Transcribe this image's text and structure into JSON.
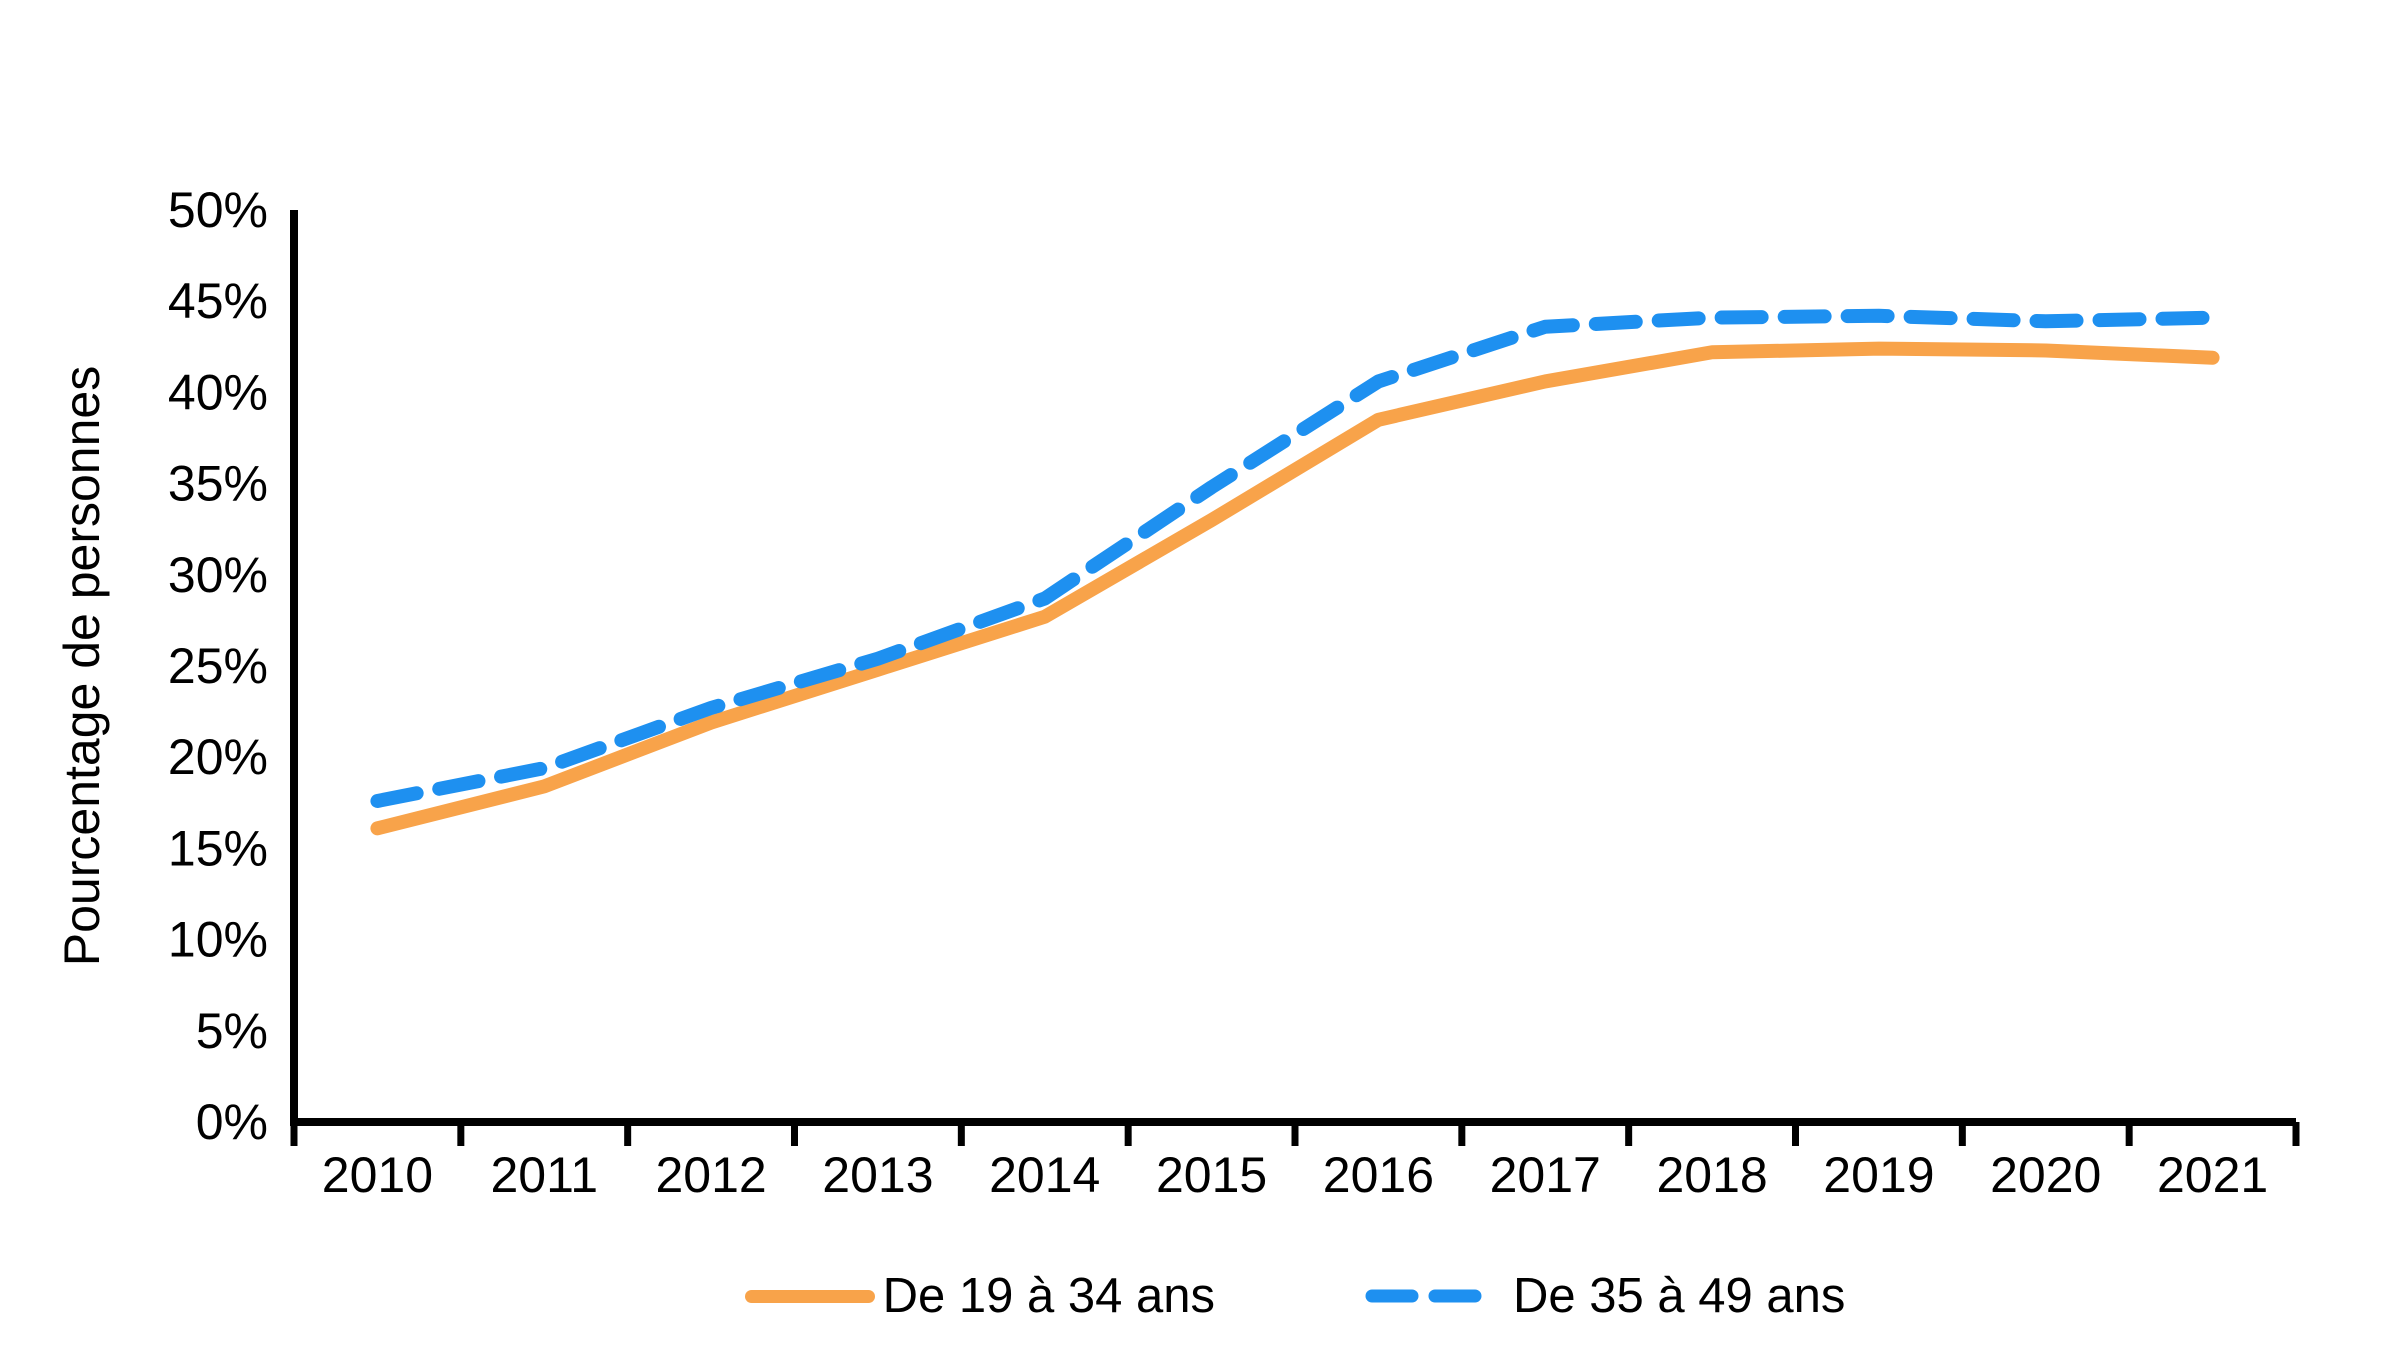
{
  "chart_data": {
    "type": "line",
    "title": "",
    "xlabel": "",
    "ylabel": "Pourcentage de personnes",
    "categories": [
      "2010",
      "2011",
      "2012",
      "2013",
      "2014",
      "2015",
      "2016",
      "2017",
      "2018",
      "2019",
      "2020",
      "2021"
    ],
    "series": [
      {
        "name": "De 19 à 34 ans",
        "color": "#F8A34A",
        "line_style": "solid",
        "values": [
          16.1,
          18.4,
          21.9,
          24.8,
          27.7,
          33.0,
          38.5,
          40.6,
          42.2,
          42.4,
          42.3,
          41.9
        ]
      },
      {
        "name": "De 35 à 49 ans",
        "color": "#1E90F0",
        "line_style": "dashed",
        "values": [
          17.6,
          19.4,
          22.7,
          25.4,
          28.7,
          34.8,
          40.6,
          43.6,
          44.1,
          44.2,
          43.9,
          44.1
        ]
      }
    ],
    "ylim": [
      0,
      50
    ],
    "ytick_step": 5,
    "ytick_labels": [
      "0%",
      "5%",
      "10%",
      "15%",
      "20%",
      "25%",
      "30%",
      "35%",
      "40%",
      "45%",
      "50%"
    ],
    "grid": false,
    "legend_position": "bottom",
    "axis_color": "#000000"
  }
}
